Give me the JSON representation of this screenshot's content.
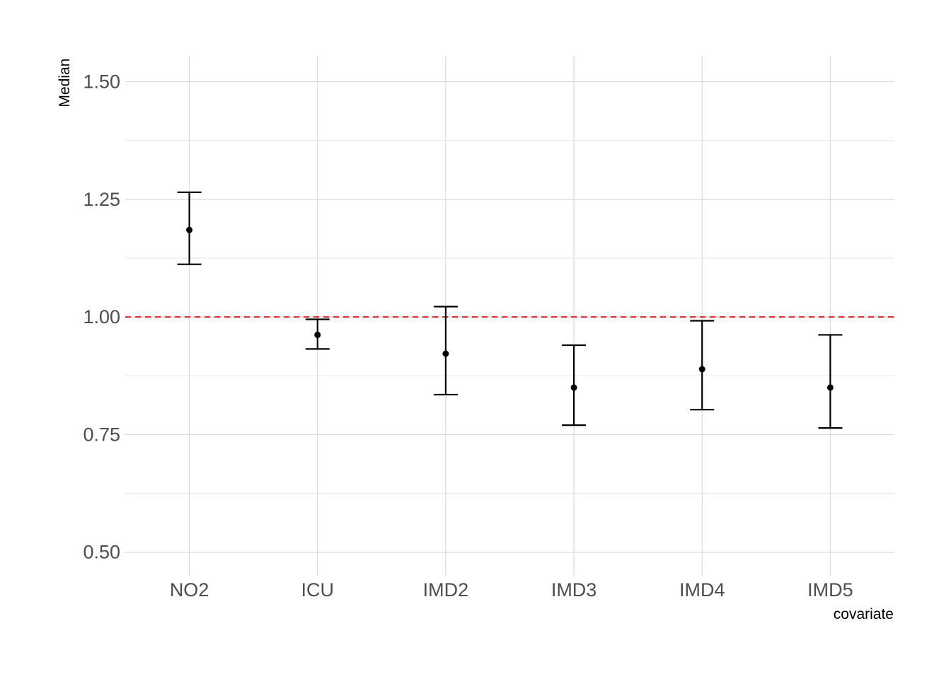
{
  "chart_data": {
    "type": "scatter",
    "subtype": "point-with-errorbars",
    "categories": [
      "NO2",
      "ICU",
      "IMD2",
      "IMD3",
      "IMD4",
      "IMD5"
    ],
    "series": [
      {
        "values": [
          1.185,
          0.962,
          0.922,
          0.85,
          0.889,
          0.85
        ],
        "lower": [
          1.112,
          0.932,
          0.835,
          0.77,
          0.803,
          0.764
        ],
        "upper": [
          1.265,
          0.995,
          1.022,
          0.94,
          0.992,
          0.962
        ]
      }
    ],
    "reference_line": {
      "y": 1.0,
      "style": "dashed",
      "color": "#e41a1c"
    },
    "xlabel": "covariate",
    "ylabel": "Median",
    "ylim": [
      0.45,
      1.555
    ],
    "yticks": [
      0.5,
      0.75,
      1.0,
      1.25,
      1.5
    ],
    "ytick_labels": [
      "0.50",
      "0.75",
      "1.00",
      "1.25",
      "1.50"
    ],
    "grid": true,
    "colors": {
      "points": "#000000",
      "grid": "#d9d9d9",
      "tick_text": "#4d4d4d"
    }
  }
}
